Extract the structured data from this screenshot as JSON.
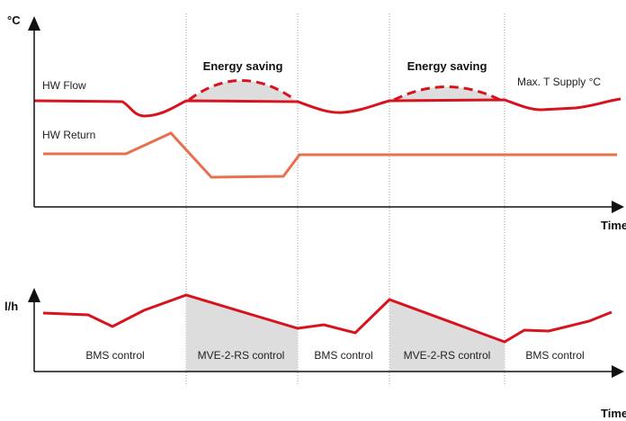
{
  "top_chart": {
    "y_axis_label": "°C",
    "x_axis_label": "Time",
    "flow_label": "HW Flow",
    "return_label": "HW Return",
    "max_label": "Max. T Supply °C",
    "saving_labels": [
      "Energy saving",
      "Energy saving"
    ]
  },
  "bottom_chart": {
    "y_axis_label": "l/h",
    "x_axis_label": "Time",
    "phases": [
      "BMS control",
      "MVE-2-RS control",
      "BMS control",
      "MVE-2-RS control",
      "BMS control"
    ]
  }
}
